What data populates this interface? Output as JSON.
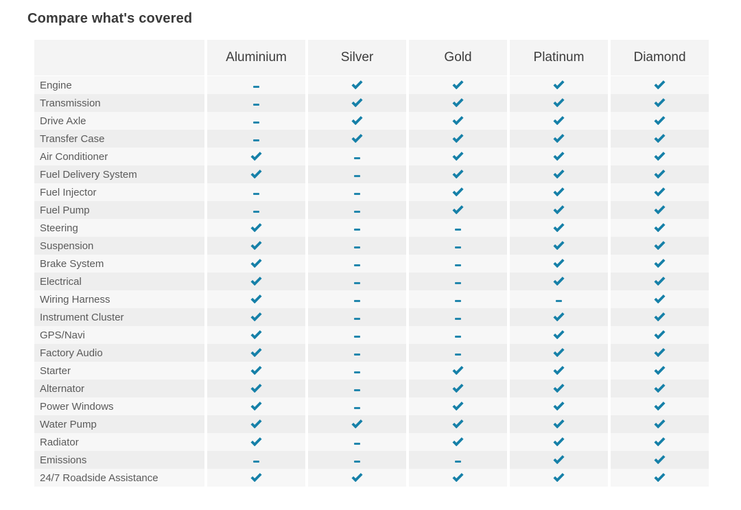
{
  "page": {
    "title": "Compare what's covered"
  },
  "colors": {
    "check": "#1580a8",
    "dash": "#2287ad",
    "header_bg": "#f4f4f4",
    "row_odd_bg": "#f7f7f7",
    "row_even_bg": "#eeeeee",
    "title_text": "#3a3a3a",
    "label_text": "#5a5a5a"
  },
  "icons": {
    "covered": "check-icon",
    "not_covered": "dash-icon"
  },
  "table": {
    "columns": [
      "Aluminium",
      "Silver",
      "Gold",
      "Platinum",
      "Diamond"
    ],
    "rows": [
      {
        "label": "Engine",
        "covered": [
          false,
          true,
          true,
          true,
          true
        ]
      },
      {
        "label": "Transmission",
        "covered": [
          false,
          true,
          true,
          true,
          true
        ]
      },
      {
        "label": "Drive Axle",
        "covered": [
          false,
          true,
          true,
          true,
          true
        ]
      },
      {
        "label": "Transfer Case",
        "covered": [
          false,
          true,
          true,
          true,
          true
        ]
      },
      {
        "label": "Air Conditioner",
        "covered": [
          true,
          false,
          true,
          true,
          true
        ]
      },
      {
        "label": "Fuel Delivery System",
        "covered": [
          true,
          false,
          true,
          true,
          true
        ]
      },
      {
        "label": "Fuel Injector",
        "covered": [
          false,
          false,
          true,
          true,
          true
        ]
      },
      {
        "label": "Fuel Pump",
        "covered": [
          false,
          false,
          true,
          true,
          true
        ]
      },
      {
        "label": "Steering",
        "covered": [
          true,
          false,
          false,
          true,
          true
        ]
      },
      {
        "label": "Suspension",
        "covered": [
          true,
          false,
          false,
          true,
          true
        ]
      },
      {
        "label": "Brake System",
        "covered": [
          true,
          false,
          false,
          true,
          true
        ]
      },
      {
        "label": "Electrical",
        "covered": [
          true,
          false,
          false,
          true,
          true
        ]
      },
      {
        "label": "Wiring Harness",
        "covered": [
          true,
          false,
          false,
          false,
          true
        ]
      },
      {
        "label": "Instrument Cluster",
        "covered": [
          true,
          false,
          false,
          true,
          true
        ]
      },
      {
        "label": "GPS/Navi",
        "covered": [
          true,
          false,
          false,
          true,
          true
        ]
      },
      {
        "label": "Factory Audio",
        "covered": [
          true,
          false,
          false,
          true,
          true
        ]
      },
      {
        "label": "Starter",
        "covered": [
          true,
          false,
          true,
          true,
          true
        ]
      },
      {
        "label": "Alternator",
        "covered": [
          true,
          false,
          true,
          true,
          true
        ]
      },
      {
        "label": "Power Windows",
        "covered": [
          true,
          false,
          true,
          true,
          true
        ]
      },
      {
        "label": "Water Pump",
        "covered": [
          true,
          true,
          true,
          true,
          true
        ]
      },
      {
        "label": "Radiator",
        "covered": [
          true,
          false,
          true,
          true,
          true
        ]
      },
      {
        "label": "Emissions",
        "covered": [
          false,
          false,
          false,
          true,
          true
        ]
      },
      {
        "label": "24/7 Roadside Assistance",
        "covered": [
          true,
          true,
          true,
          true,
          true
        ]
      }
    ]
  }
}
